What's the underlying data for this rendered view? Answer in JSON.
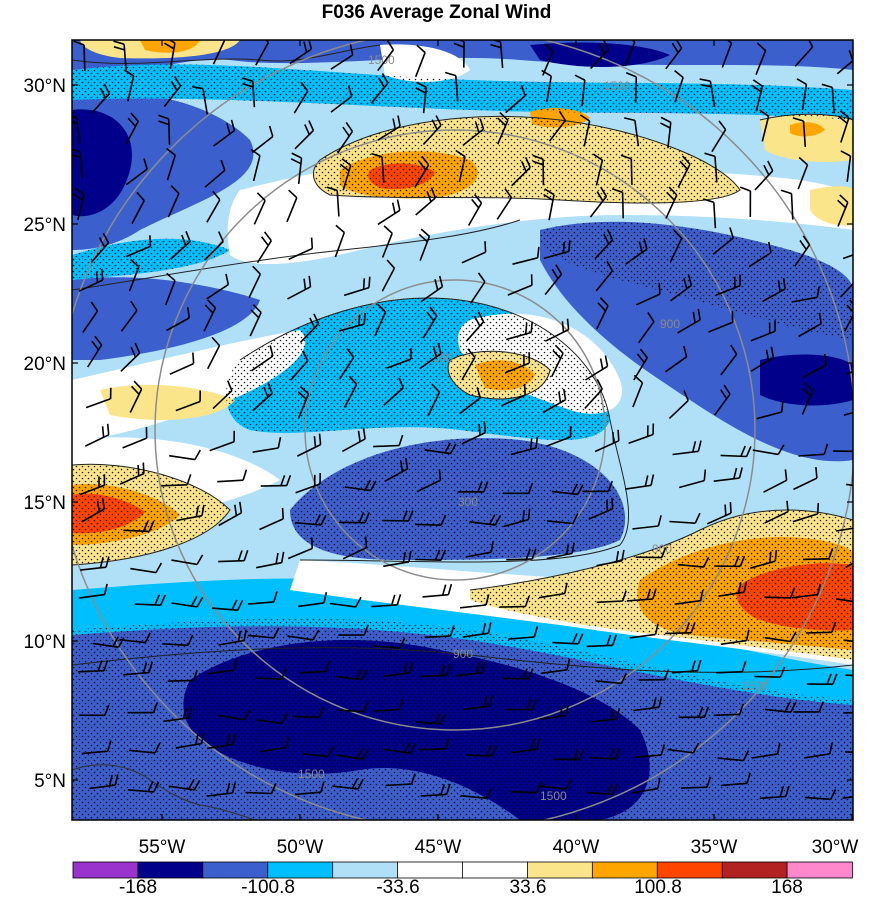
{
  "title": "F036 Average Zonal Wind",
  "map": {
    "lat_labels": [
      "30°N",
      "25°N",
      "20°N",
      "15°N",
      "10°N",
      "5°N"
    ],
    "lon_labels": [
      "55°W",
      "50°W",
      "45°W",
      "40°W",
      "35°W",
      "30°W"
    ],
    "range_ring_labels": [
      "300",
      "900",
      "1500"
    ],
    "land_outline": "coastline-bottom-left"
  },
  "colorbar": {
    "colors": [
      "#9a32cd",
      "#00008b",
      "#3b5fcd",
      "#00bfff",
      "#b0e0f8",
      "#ffffff",
      "#ffffff",
      "#fbe58a",
      "#ffa500",
      "#ff4500",
      "#b22222",
      "#ff88cc"
    ],
    "labels": [
      "-168",
      "-100.8",
      "-33.6",
      "33.6",
      "100.8",
      "168"
    ]
  }
}
